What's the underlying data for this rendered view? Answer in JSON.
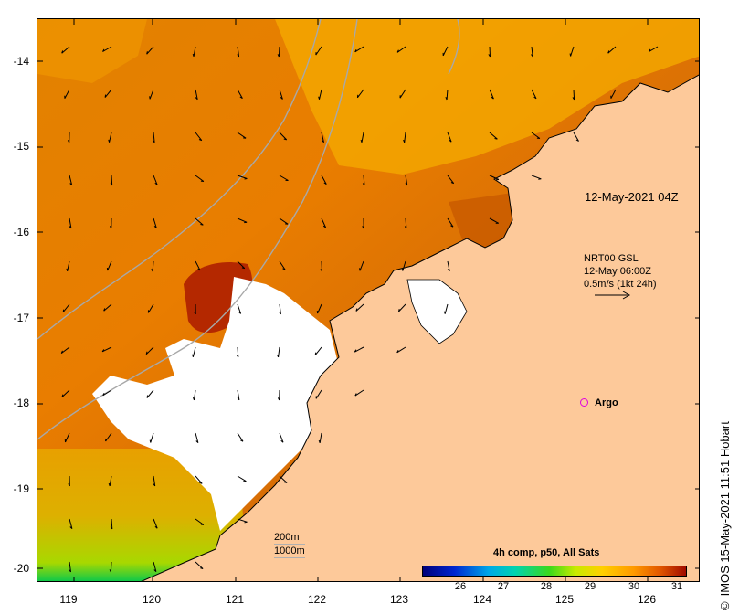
{
  "map": {
    "timestamp": "12-May-2021 04Z",
    "x_ticks": [
      "119",
      "120",
      "121",
      "122",
      "123",
      "124",
      "125",
      "126"
    ],
    "y_ticks": [
      "-14",
      "-15",
      "-16",
      "-17",
      "-18",
      "-19",
      "-20"
    ],
    "current_vectors": {
      "product": "NRT00 GSL",
      "time": "12-May 06:00Z",
      "scale": "0.5m/s (1kt 24h)"
    },
    "argo_label": "Argo",
    "depth_contours": [
      "200m",
      "1000m"
    ],
    "colorbar": {
      "title": "4h comp, p50, All Sats",
      "ticks": [
        "26",
        "27",
        "28",
        "29",
        "30",
        "31"
      ],
      "colors": [
        "#00007a",
        "#0026d0",
        "#00a8e8",
        "#00d3b0",
        "#3ad81c",
        "#c8ea00",
        "#ffd000",
        "#ff9a00",
        "#e25800",
        "#a00a00"
      ]
    },
    "credit": "IMOS 15-May-2021 11:51 Hobart",
    "land_color": "#fdc99a"
  }
}
